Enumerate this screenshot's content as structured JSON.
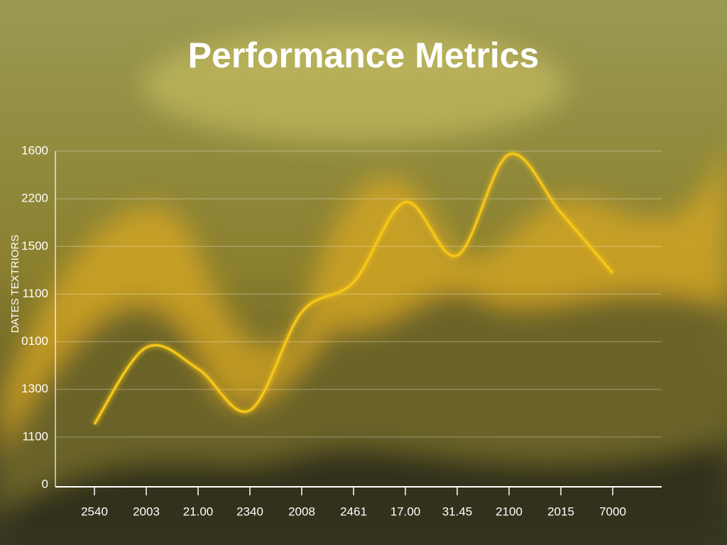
{
  "chart_data": {
    "type": "line",
    "title": "Performance Metrics",
    "y_label": "DATES TEXTRIORS",
    "categories": [
      "2540",
      "2003",
      "21.00",
      "2340",
      "2008",
      "2461",
      "17.00",
      "31.45",
      "2100",
      "2015",
      "7000"
    ],
    "series": [
      {
        "color": "#f5c518",
        "values": [
          1.27,
          2.88,
          2.43,
          1.56,
          3.62,
          4.25,
          5.93,
          4.81,
          6.93,
          5.71,
          4.44
        ]
      }
    ],
    "ylim": [
      0,
      7
    ],
    "yticks": [
      {
        "value": 0,
        "label": "0"
      },
      {
        "value": 1,
        "label": "1100"
      },
      {
        "value": 2,
        "label": "1300"
      },
      {
        "value": 3,
        "label": "0100"
      },
      {
        "value": 4,
        "label": "1100"
      },
      {
        "value": 5,
        "label": "1500"
      },
      {
        "value": 6,
        "label": "2200"
      },
      {
        "value": 7,
        "label": "1600"
      }
    ],
    "grid": true
  }
}
